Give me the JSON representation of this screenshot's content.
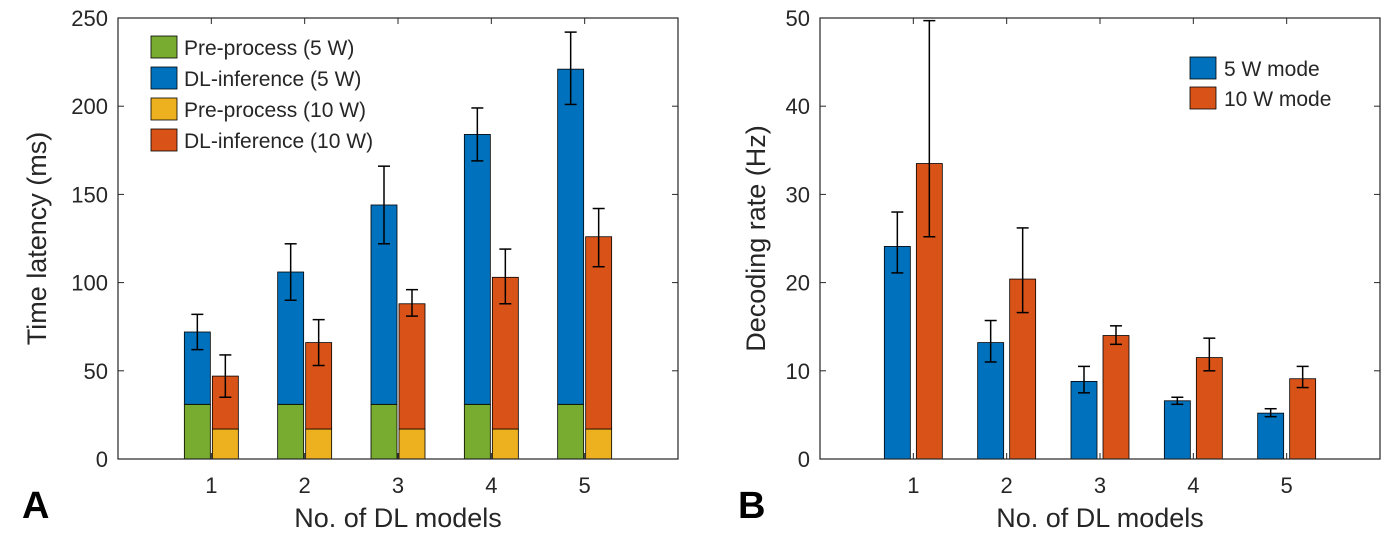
{
  "colors": {
    "pre_5w": "#77AC30",
    "dl_5w": "#0072BD",
    "pre_10w": "#EDB120",
    "dl_10w": "#D95319",
    "errorbar": "#000000",
    "axis": "#262626"
  },
  "chart_data": [
    {
      "panel_label": "A",
      "type": "bar",
      "stacked": true,
      "xlabel": "No. of DL models",
      "ylabel": "Time latency (ms)",
      "categories": [
        "1",
        "2",
        "3",
        "4",
        "5"
      ],
      "ylim": [
        0,
        250
      ],
      "yticks": [
        0,
        50,
        100,
        150,
        200,
        250
      ],
      "grid": false,
      "legend_position": "top-left",
      "groups": [
        {
          "mode": "5 W",
          "segments": [
            {
              "name": "Pre-process (5 W)",
              "color_key": "pre_5w",
              "values": [
                31,
                31,
                31,
                31,
                31
              ]
            },
            {
              "name": "DL-inference (5 W)",
              "color_key": "dl_5w",
              "values": [
                41,
                75,
                113,
                153,
                190
              ]
            }
          ],
          "totals": [
            72,
            106,
            144,
            184,
            221
          ],
          "error_low": [
            62,
            90,
            122,
            169,
            201
          ],
          "error_high": [
            82,
            122,
            166,
            199,
            242
          ]
        },
        {
          "mode": "10 W",
          "segments": [
            {
              "name": "Pre-process (10 W)",
              "color_key": "pre_10w",
              "values": [
                17,
                17,
                17,
                17,
                17
              ]
            },
            {
              "name": "DL-inference (10 W)",
              "color_key": "dl_10w",
              "values": [
                30,
                49,
                71,
                86,
                109
              ]
            }
          ],
          "totals": [
            47,
            66,
            88,
            103,
            126
          ],
          "error_low": [
            35,
            53,
            81,
            88,
            109
          ],
          "error_high": [
            59,
            79,
            96,
            119,
            142
          ]
        }
      ]
    },
    {
      "panel_label": "B",
      "type": "bar",
      "stacked": false,
      "xlabel": "No. of DL models",
      "ylabel": "Decoding rate (Hz)",
      "categories": [
        "1",
        "2",
        "3",
        "4",
        "5"
      ],
      "ylim": [
        0,
        50
      ],
      "yticks": [
        0,
        10,
        20,
        30,
        40,
        50
      ],
      "grid": false,
      "legend_position": "top-right",
      "series": [
        {
          "name": "5 W mode",
          "color_key": "dl_5w",
          "values": [
            24.1,
            13.2,
            8.8,
            6.6,
            5.2
          ],
          "error_low": [
            21.1,
            11.0,
            7.5,
            6.2,
            4.8
          ],
          "error_high": [
            28.0,
            15.7,
            10.5,
            7.0,
            5.7
          ]
        },
        {
          "name": "10 W mode",
          "color_key": "dl_10w",
          "values": [
            33.5,
            20.4,
            14.0,
            11.5,
            9.1
          ],
          "error_low": [
            25.2,
            16.6,
            13.0,
            10.0,
            8.1
          ],
          "error_high": [
            49.7,
            26.2,
            15.1,
            13.7,
            10.5
          ]
        }
      ]
    }
  ]
}
